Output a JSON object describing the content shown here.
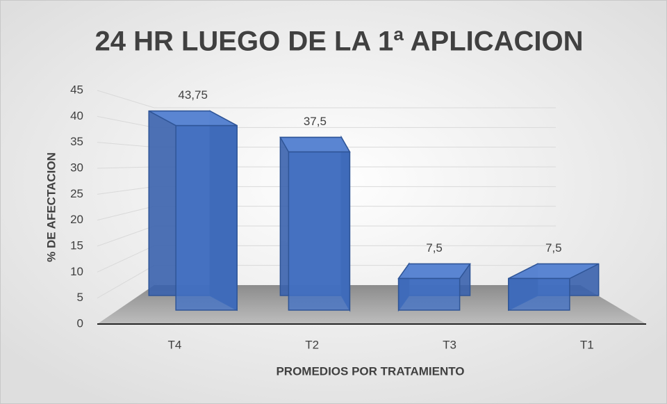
{
  "chart_data": {
    "type": "bar3d",
    "title": "24 HR LUEGO DE LA 1ª APLICACION",
    "y_label": "% DE AFECTACION",
    "x_label": "PROMEDIOS POR TRATAMIENTO",
    "categories": [
      "T4",
      "T2",
      "T3",
      "T1"
    ],
    "values": [
      43.75,
      37.5,
      7.5,
      7.5
    ],
    "value_labels": [
      "43,75",
      "37,5",
      "7,5",
      "7,5"
    ],
    "color": "#4472c4",
    "ylim": [
      0,
      45
    ],
    "yticks": [
      0,
      5,
      10,
      15,
      20,
      25,
      30,
      35,
      40,
      45
    ],
    "grid": true
  }
}
